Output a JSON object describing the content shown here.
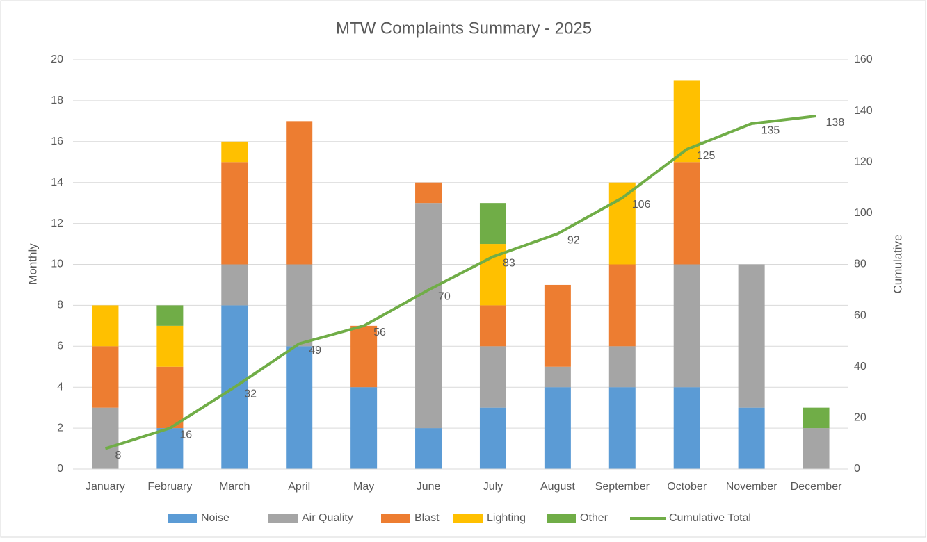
{
  "chart_data": {
    "type": "bar",
    "title": "MTW Complaints Summary - 2025",
    "y_label": "Monthly",
    "y2_label": "Cumulative",
    "categories": [
      "January",
      "February",
      "March",
      "April",
      "May",
      "June",
      "July",
      "August",
      "September",
      "October",
      "November",
      "December"
    ],
    "series": [
      {
        "name": "Noise",
        "color": "#5b9bd5",
        "values": [
          0,
          2,
          8,
          6,
          4,
          2,
          3,
          4,
          4,
          4,
          3,
          0
        ]
      },
      {
        "name": "Air Quality",
        "color": "#a5a5a5",
        "values": [
          3,
          0,
          2,
          4,
          0,
          11,
          3,
          1,
          2,
          6,
          7,
          2
        ]
      },
      {
        "name": "Blast",
        "color": "#ed7d31",
        "values": [
          3,
          3,
          5,
          7,
          3,
          1,
          2,
          4,
          4,
          5,
          0,
          0
        ]
      },
      {
        "name": "Lighting",
        "color": "#ffc000",
        "values": [
          2,
          2,
          1,
          0,
          0,
          0,
          3,
          0,
          4,
          4,
          0,
          0
        ]
      },
      {
        "name": "Other",
        "color": "#70ad47",
        "values": [
          0,
          1,
          0,
          0,
          0,
          0,
          2,
          0,
          0,
          0,
          0,
          1
        ]
      },
      {
        "name": "Cumulative Total",
        "color": "#70ad47",
        "type": "line",
        "axis": "y2",
        "values": [
          8,
          16,
          32,
          49,
          56,
          70,
          83,
          92,
          106,
          125,
          135,
          138
        ]
      }
    ],
    "stacked": true,
    "ylim": [
      0,
      20
    ],
    "yticks": [
      0,
      2,
      4,
      6,
      8,
      10,
      12,
      14,
      16,
      18,
      20
    ],
    "y2lim": [
      0,
      160
    ],
    "y2ticks": [
      0,
      20,
      40,
      60,
      80,
      100,
      120,
      140,
      160
    ],
    "grid": true,
    "legend": "bottom"
  }
}
